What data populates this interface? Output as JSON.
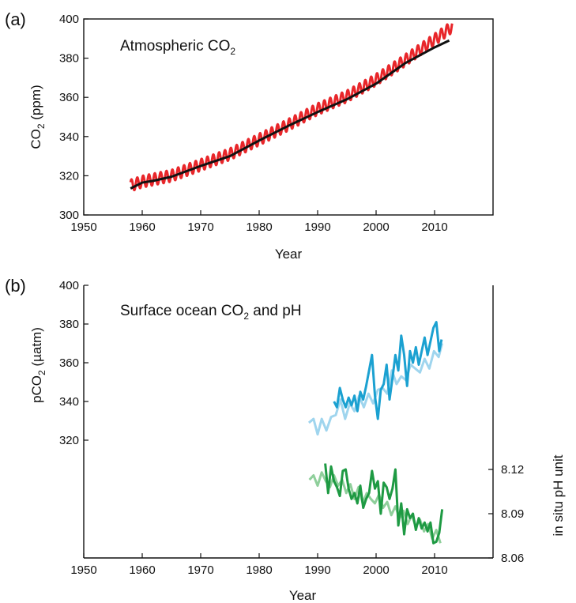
{
  "chart_data": [
    {
      "type": "line",
      "panel_label": "(a)",
      "title_main": "Atmospheric CO",
      "title_sub": "2",
      "ylabel_main": "CO",
      "ylabel_sub": "2",
      "ylabel_rest": " (ppm)",
      "xlabel": "Year",
      "xlim": [
        1950,
        2020
      ],
      "ylim": [
        300,
        400
      ],
      "xticks": [
        1950,
        1960,
        1970,
        1980,
        1990,
        2000,
        2010
      ],
      "yticks": [
        300,
        320,
        340,
        360,
        380,
        400
      ],
      "grid": false,
      "series": [
        {
          "color": "#e8262a",
          "seasonal_amplitude_ppm": 3,
          "x": [
            1958,
            1960,
            1965,
            1970,
            1975,
            1980,
            1985,
            1990,
            1995,
            2000,
            2005,
            2010,
            2013
          ],
          "y": [
            315,
            317,
            320,
            325.5,
            331,
            338.5,
            346,
            354,
            360.5,
            369,
            379,
            389.5,
            396
          ]
        },
        {
          "color": "#111111",
          "x": [
            1958,
            1960,
            1962,
            1965,
            1970,
            1975,
            1980,
            1985,
            1990,
            1995,
            2000,
            2005,
            2010,
            2012.5
          ],
          "y": [
            313.5,
            316.5,
            317.5,
            319.5,
            325,
            330,
            338,
            345.5,
            352.5,
            359,
            367,
            377.5,
            385.5,
            389
          ]
        }
      ]
    },
    {
      "type": "line",
      "panel_label": "(b)",
      "title_main": "Surface ocean CO",
      "title_sub": "2",
      "title_rest": " and pH",
      "ylabel_main": "pCO",
      "ylabel_sub": "2",
      "ylabel_rest": " (µatm)",
      "y2label": "in situ pH unit",
      "xlabel": "Year",
      "xlim": [
        1950,
        2020
      ],
      "ylim": [
        300,
        400
      ],
      "yticks": [
        320,
        340,
        360,
        380,
        400
      ],
      "y2lim": [
        8.06,
        8.15
      ],
      "y2ticks": [
        8.06,
        8.09,
        8.12
      ],
      "y2ticklabels": [
        "8.06",
        "8.09",
        "8.12"
      ],
      "xticks": [
        1950,
        1960,
        1970,
        1980,
        1990,
        2000,
        2010
      ],
      "grid": false,
      "series": [
        {
          "axis": "left",
          "color": "#9fd5ee",
          "x": [
            1988.5,
            1989.3,
            1990,
            1990.7,
            1991.5,
            1992.3,
            1993.1,
            1993.9,
            1994.7,
            1995.5,
            1996.3,
            1997.1,
            1997.9,
            1998.7,
            1999.5,
            2000.3,
            2001.1,
            2001.9,
            2002.7,
            2003.5,
            2004.3,
            2005.1,
            2005.9,
            2006.7,
            2007.5,
            2008.3,
            2009.1,
            2009.9,
            2010.7,
            2011.3
          ],
          "y": [
            329,
            331,
            323,
            331,
            325,
            332,
            333,
            341,
            331,
            339,
            335,
            343,
            337,
            344,
            339,
            346,
            347,
            344,
            356,
            349,
            353,
            351,
            359,
            357,
            355,
            362,
            357,
            366,
            363,
            370
          ]
        },
        {
          "axis": "left",
          "color": "#1ba1d1",
          "x": [
            1992.8,
            1993.3,
            1993.8,
            1994.3,
            1994.8,
            1995.3,
            1995.8,
            1996.3,
            1996.8,
            1997.3,
            1997.8,
            1998.3,
            1998.8,
            1999.3,
            1999.8,
            2000.3,
            2000.8,
            2001.3,
            2001.8,
            2002.3,
            2002.8,
            2003.3,
            2003.8,
            2004.3,
            2004.8,
            2005.3,
            2005.8,
            2006.3,
            2006.8,
            2007.3,
            2007.8,
            2008.3,
            2008.8,
            2009.3,
            2009.8,
            2010.3,
            2010.8,
            2011.2
          ],
          "y": [
            340,
            337,
            347,
            341,
            337,
            342,
            338,
            343,
            335,
            345,
            341,
            348,
            356,
            364,
            343,
            331,
            346,
            349,
            359,
            341,
            352,
            364,
            356,
            374,
            364,
            348,
            366,
            360,
            368,
            359,
            366,
            373,
            364,
            371,
            378,
            381,
            366,
            372
          ]
        },
        {
          "axis": "right",
          "color": "#8fcf9b",
          "x": [
            1988.6,
            1989.3,
            1990,
            1990.7,
            1991.4,
            1992.1,
            1992.8,
            1993.5,
            1994.2,
            1994.9,
            1995.6,
            1996.3,
            1997,
            1997.7,
            1998.4,
            1999.1,
            1999.8,
            2000.5,
            2001.2,
            2001.9,
            2002.6,
            2003.3,
            2004,
            2004.7,
            2005.4,
            2006.1,
            2006.8,
            2007.5,
            2008.2,
            2008.9,
            2009.6,
            2010.3,
            2011
          ],
          "y": [
            8.113,
            8.116,
            8.109,
            8.118,
            8.112,
            8.108,
            8.116,
            8.109,
            8.113,
            8.104,
            8.11,
            8.1,
            8.108,
            8.097,
            8.104,
            8.1,
            8.097,
            8.103,
            8.094,
            8.098,
            8.089,
            8.095,
            8.087,
            8.092,
            8.083,
            8.089,
            8.081,
            8.086,
            8.078,
            8.083,
            8.073,
            8.079,
            8.07
          ]
        },
        {
          "axis": "right",
          "color": "#1e9a43",
          "x": [
            1991.3,
            1991.8,
            1992.3,
            1992.8,
            1993.3,
            1993.8,
            1994.3,
            1994.8,
            1995.3,
            1995.8,
            1996.3,
            1996.8,
            1997.3,
            1997.8,
            1998.3,
            1998.8,
            1999.3,
            1999.8,
            2000.3,
            2000.8,
            2001.3,
            2001.8,
            2002.3,
            2002.8,
            2003.3,
            2003.8,
            2004.3,
            2004.8,
            2005.3,
            2005.8,
            2006.3,
            2006.8,
            2007.3,
            2007.8,
            2008.3,
            2008.8,
            2009.3,
            2009.8,
            2010.3,
            2010.8,
            2011.3
          ],
          "y": [
            8.124,
            8.104,
            8.122,
            8.112,
            8.108,
            8.102,
            8.119,
            8.12,
            8.107,
            8.1,
            8.104,
            8.097,
            8.109,
            8.094,
            8.1,
            8.104,
            8.119,
            8.107,
            8.112,
            8.09,
            8.111,
            8.108,
            8.1,
            8.107,
            8.12,
            8.082,
            8.097,
            8.076,
            8.093,
            8.087,
            8.09,
            8.079,
            8.087,
            8.08,
            8.084,
            8.078,
            8.084,
            8.07,
            8.071,
            8.077,
            8.093
          ]
        }
      ]
    }
  ]
}
